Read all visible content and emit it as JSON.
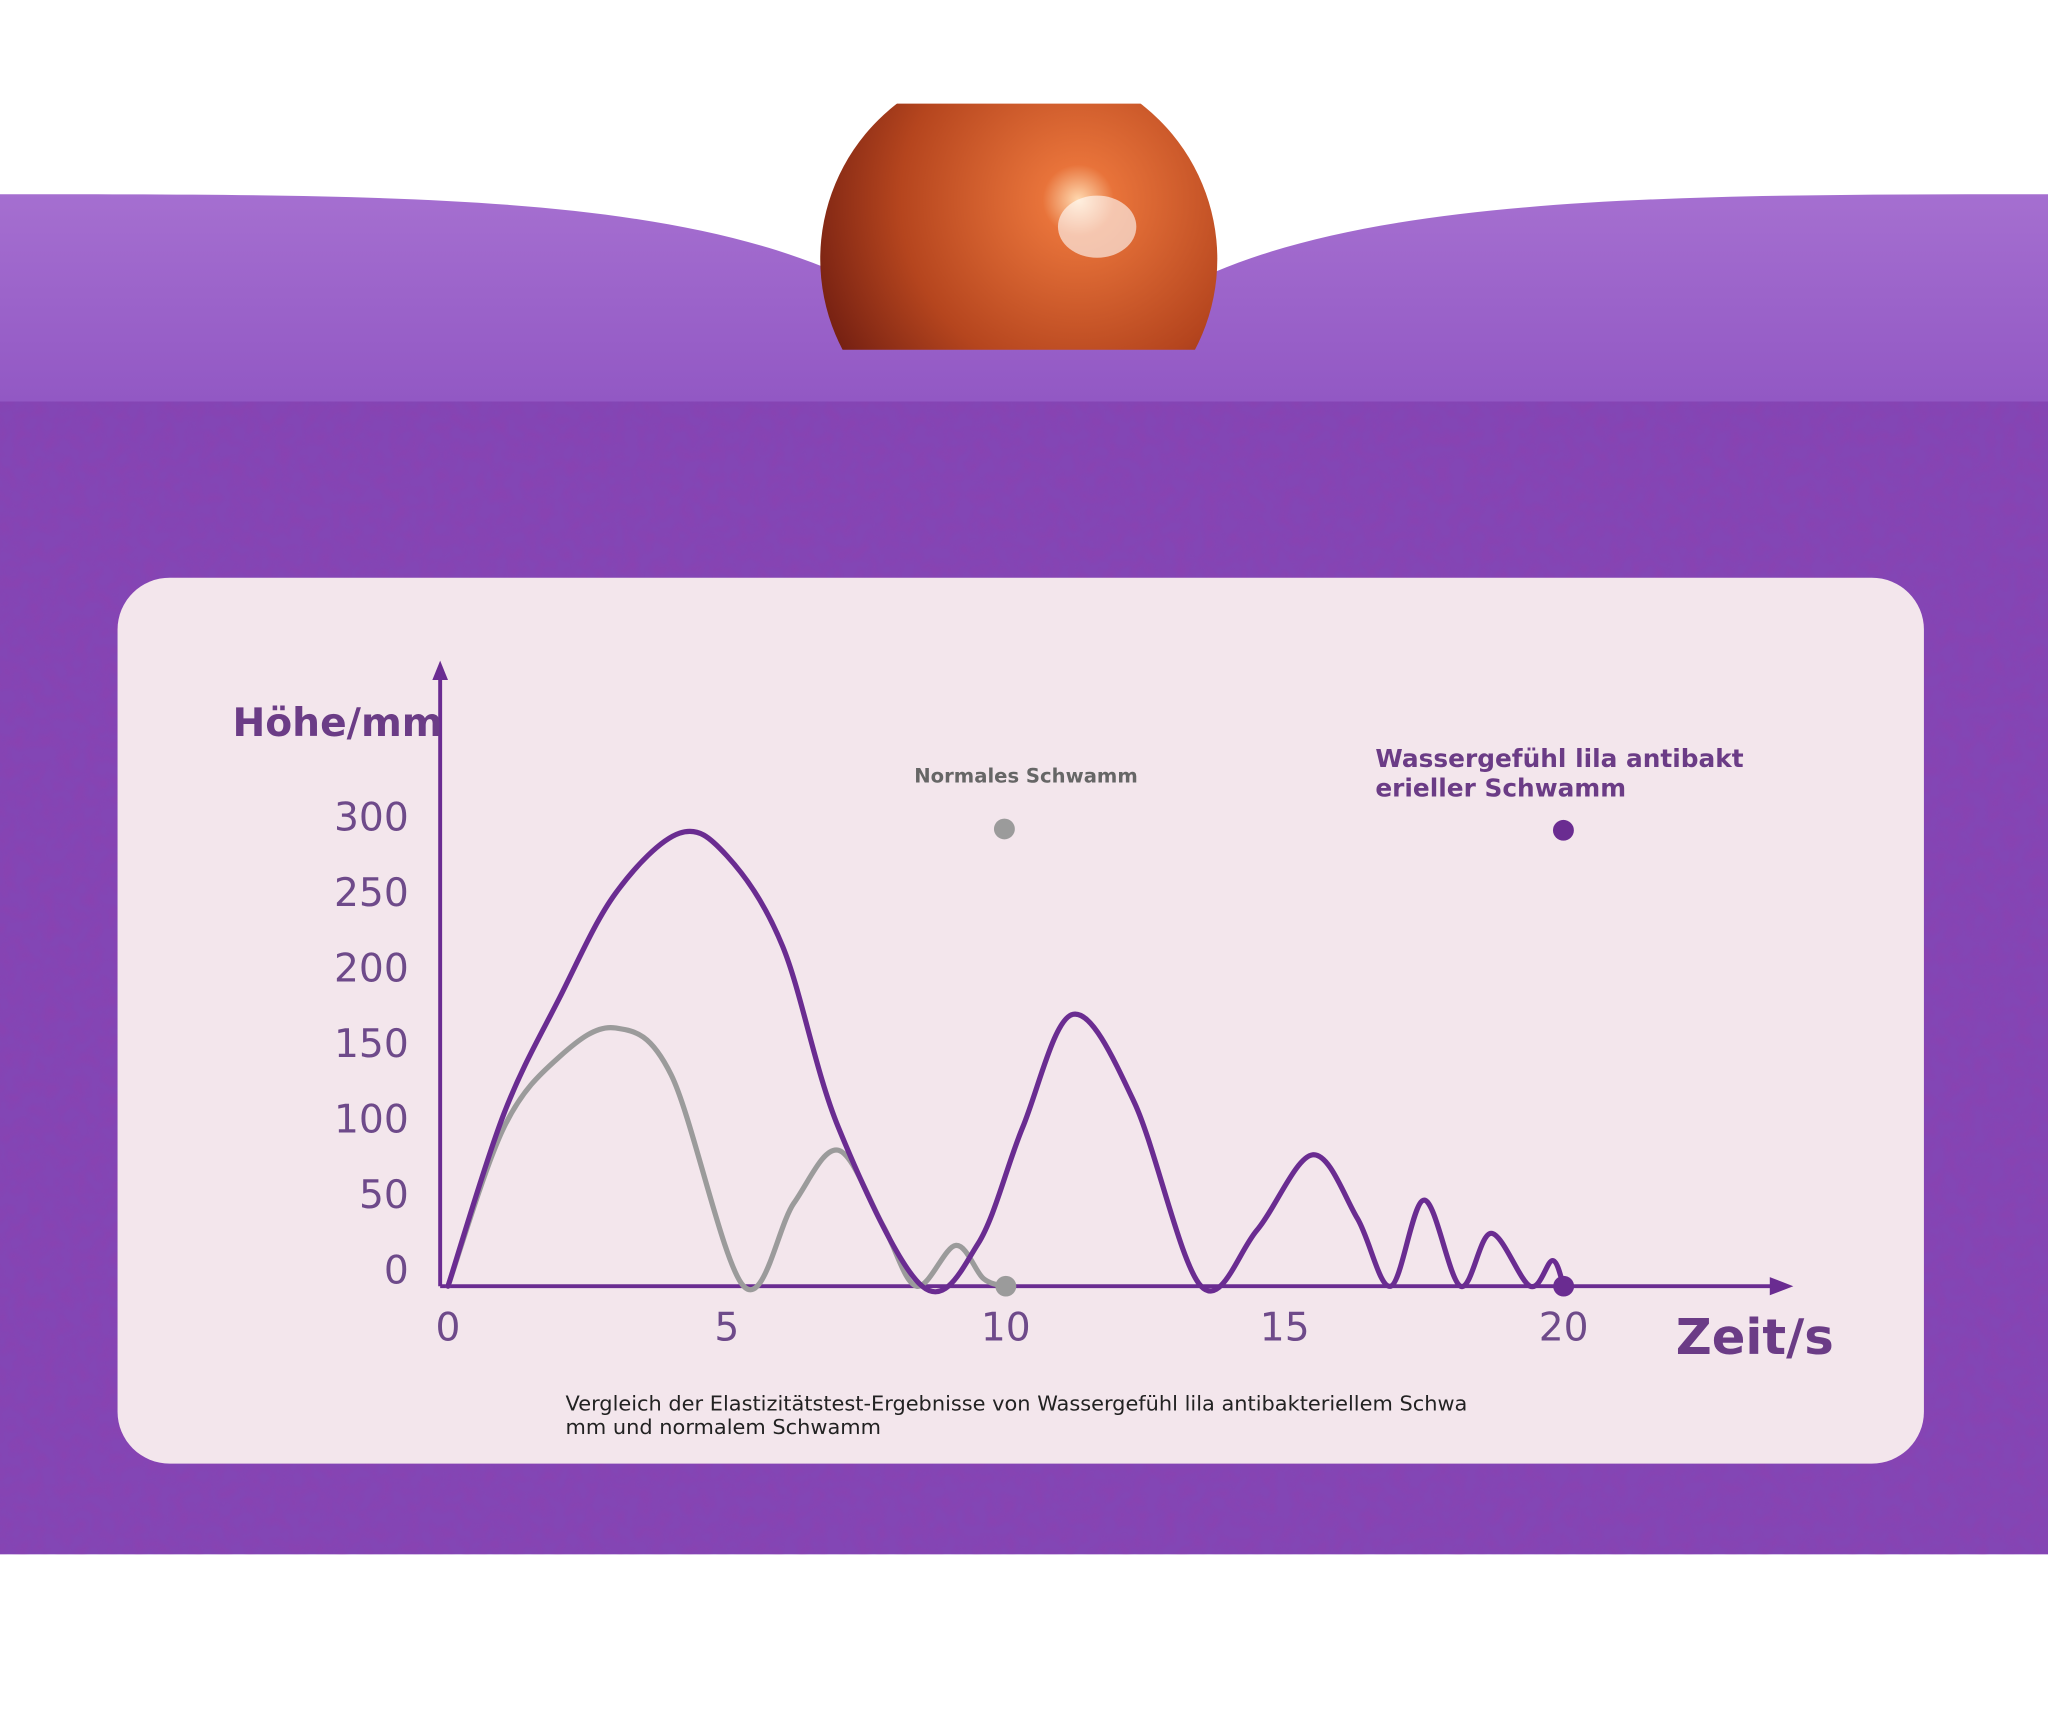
{
  "chart_data": {
    "type": "line",
    "y_label": "Höhe/mm",
    "x_label": "Zeit/s",
    "caption": "Vergleich der Elastizitätstest-Ergebnisse von Wassergefühl lila antibakteriellem Schwamm und normalem Schwamm",
    "xlim": [
      0,
      24
    ],
    "ylim": [
      0,
      410
    ],
    "xticks": [
      0,
      5,
      10,
      15,
      20
    ],
    "yticks": [
      0,
      50,
      100,
      150,
      200,
      250,
      300
    ],
    "grid": false,
    "series": [
      {
        "name": "Normales Schwamm",
        "color": "#9b9b9b",
        "x": [
          0,
          1,
          2,
          3,
          4,
          5.3,
          6.2,
          7,
          7.8,
          8.4,
          9.1,
          9.6,
          10
        ],
        "values": [
          0,
          105,
          152,
          171,
          140,
          0,
          55,
          90,
          40,
          0,
          27,
          5,
          0
        ]
      },
      {
        "name": "Wassergefühl lila antibakterieller Schwamm",
        "color": "#6a2c91",
        "x": [
          0,
          1,
          2,
          3,
          4.15,
          5,
          6,
          7,
          8.5,
          9.5,
          10.3,
          11.2,
          12.3,
          13.5,
          14.5,
          15.5,
          16.3,
          16.9,
          17.5,
          18.15,
          18.7,
          19.4,
          19.8,
          20
        ],
        "values": [
          0,
          114,
          191,
          260,
          300,
          285,
          225,
          105,
          0,
          28,
          105,
          180,
          122,
          0,
          37,
          87,
          45,
          0,
          57,
          0,
          35,
          0,
          17,
          0
        ]
      }
    ]
  }
}
